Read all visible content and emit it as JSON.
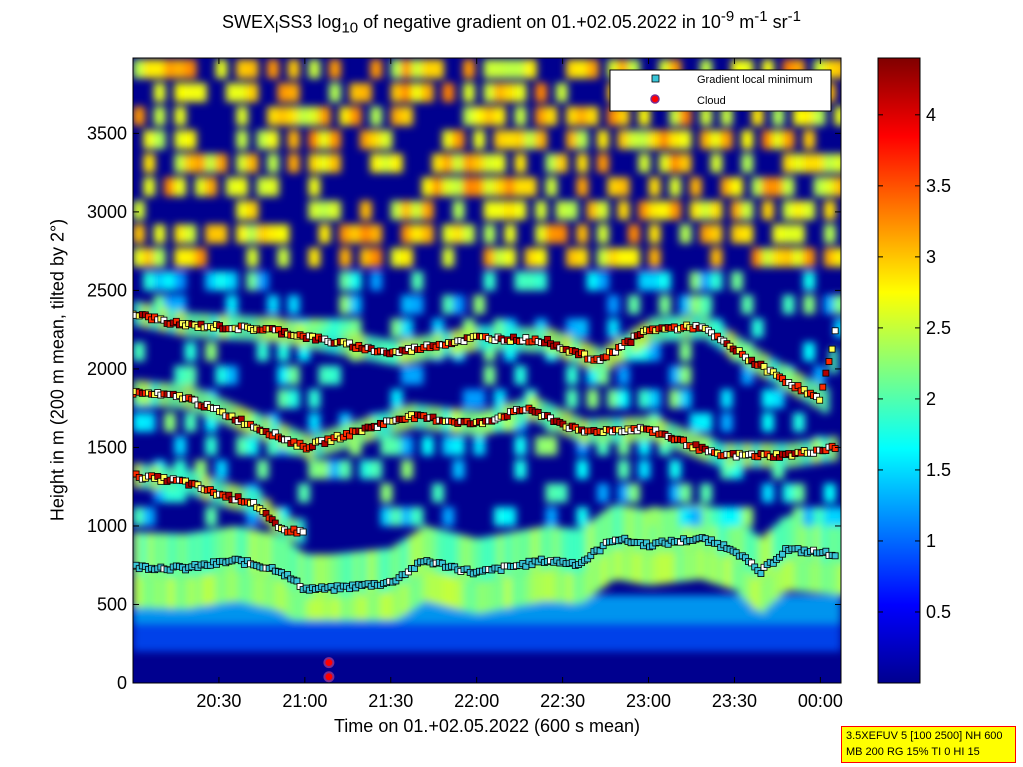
{
  "chart_data": {
    "type": "heatmap",
    "title": {
      "prefix": "SWEX",
      "sub_l": "l",
      "mid": "SS3 log",
      "sub_10": "10",
      "rest": " of negative gradient on 01.+02.05.2022 in 10",
      "sup_1": "-9",
      "unit_mid": " m",
      "sup_2": "-1",
      "unit_end": " sr",
      "sup_3": "-1"
    },
    "xlabel": "Time on 01.+02.05.2022 (600 s mean)",
    "ylabel": "Height in m (200 m mean, tilted by 2°)",
    "x_ticks": [
      "20:30",
      "21:00",
      "21:30",
      "22:00",
      "22:30",
      "23:00",
      "23:30",
      "00:00"
    ],
    "x_tick_hours": [
      20.5,
      21.0,
      21.5,
      22.0,
      22.5,
      23.0,
      23.5,
      24.0
    ],
    "xlim": [
      20.0,
      24.12
    ],
    "y_ticks": [
      "0",
      "500",
      "1000",
      "1500",
      "2000",
      "2500",
      "3000",
      "3500"
    ],
    "y_tick_values": [
      0,
      500,
      1000,
      1500,
      2000,
      2500,
      3000,
      3500
    ],
    "ylim": [
      0,
      3980
    ],
    "colorbar": {
      "ticks": [
        "0.5",
        "1",
        "1.5",
        "2",
        "2.5",
        "3",
        "3.5",
        "4"
      ],
      "tick_values": [
        0.5,
        1.0,
        1.5,
        2.0,
        2.5,
        3.0,
        3.5,
        4.0
      ],
      "range": [
        0.0,
        4.4
      ],
      "colormap": "jet"
    },
    "legend": {
      "position": "top-right",
      "entries": [
        {
          "label": "Gradient local minimum",
          "marker": "square",
          "color": "#39c5d8"
        },
        {
          "label": "Cloud",
          "marker": "circle",
          "color": "#ff0000",
          "edge": "#7b2b8f"
        }
      ]
    },
    "gradient_layers_m": [
      {
        "name": "boundary layer",
        "times": [
          20.0,
          20.3,
          20.6,
          20.85,
          21.0,
          21.15,
          21.5,
          21.7,
          22.0,
          22.2,
          22.4,
          22.6,
          22.8,
          23.0,
          23.3,
          23.5,
          23.65,
          23.8,
          24.1
        ],
        "heights": [
          740,
          730,
          780,
          720,
          600,
          600,
          640,
          780,
          700,
          740,
          780,
          760,
          920,
          880,
          920,
          850,
          700,
          850,
          820
        ]
      },
      {
        "name": "residual layer",
        "times": [
          20.0,
          20.3,
          20.5,
          20.7,
          20.85,
          21.0
        ],
        "heights": [
          1320,
          1280,
          1200,
          1150,
          980,
          960
        ]
      },
      {
        "name": "upper layer",
        "times": [
          20.0,
          20.3,
          21.0,
          21.3,
          21.6,
          22.0,
          22.3,
          22.6,
          23.0,
          23.4,
          23.8,
          24.1
        ],
        "heights": [
          1850,
          1820,
          1500,
          1600,
          1700,
          1650,
          1750,
          1600,
          1620,
          1450,
          1450,
          1500
        ]
      },
      {
        "name": "top layer",
        "times": [
          20.0,
          20.3,
          20.8,
          21.5,
          22.0,
          22.4,
          22.7,
          23.0,
          23.3,
          23.6,
          24.0,
          24.1
        ],
        "heights": [
          2350,
          2280,
          2250,
          2100,
          2200,
          2180,
          2050,
          2250,
          2270,
          2050,
          1800,
          2300
        ]
      }
    ],
    "cloud_points": [
      {
        "time": 21.14,
        "height": 130
      },
      {
        "time": 21.14,
        "height": 40
      }
    ]
  },
  "info_box": {
    "line1": "3.5XEFUV 5 [100 2500] NH 600",
    "line2": "MB 200 RG 15% TI 0 HI 15"
  }
}
